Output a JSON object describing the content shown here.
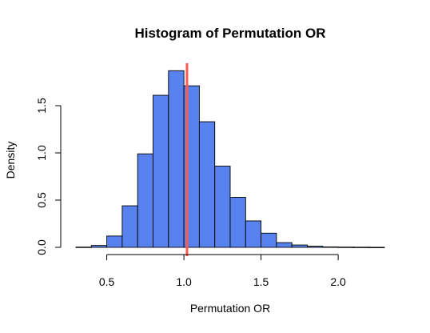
{
  "chart_data": {
    "type": "histogram",
    "title": "Histogram of Permutation OR",
    "xlabel": "Permutation OR",
    "ylabel": "Density",
    "xlim": [
      0.3,
      2.3
    ],
    "ylim": [
      0,
      1.9
    ],
    "x_ticks": [
      0.5,
      1.0,
      1.5,
      2.0
    ],
    "x_tick_labels": [
      "0.5",
      "1.0",
      "1.5",
      "2.0"
    ],
    "y_ticks": [
      0.0,
      0.5,
      1.0,
      1.5
    ],
    "y_tick_labels": [
      "0.0",
      "0.5",
      "1.0",
      "1.5"
    ],
    "bin_width": 0.1,
    "bins": [
      {
        "start": 0.3,
        "end": 0.4,
        "density": 0.003
      },
      {
        "start": 0.4,
        "end": 0.5,
        "density": 0.02
      },
      {
        "start": 0.5,
        "end": 0.6,
        "density": 0.12
      },
      {
        "start": 0.6,
        "end": 0.7,
        "density": 0.44
      },
      {
        "start": 0.7,
        "end": 0.8,
        "density": 0.99
      },
      {
        "start": 0.8,
        "end": 0.9,
        "density": 1.61
      },
      {
        "start": 0.9,
        "end": 1.0,
        "density": 1.87
      },
      {
        "start": 1.0,
        "end": 1.1,
        "density": 1.71
      },
      {
        "start": 1.1,
        "end": 1.2,
        "density": 1.33
      },
      {
        "start": 1.2,
        "end": 1.3,
        "density": 0.86
      },
      {
        "start": 1.3,
        "end": 1.4,
        "density": 0.53
      },
      {
        "start": 1.4,
        "end": 1.5,
        "density": 0.28
      },
      {
        "start": 1.5,
        "end": 1.6,
        "density": 0.15
      },
      {
        "start": 1.6,
        "end": 1.7,
        "density": 0.05
      },
      {
        "start": 1.7,
        "end": 1.8,
        "density": 0.025
      },
      {
        "start": 1.8,
        "end": 1.9,
        "density": 0.012
      },
      {
        "start": 1.9,
        "end": 2.0,
        "density": 0.005
      },
      {
        "start": 2.0,
        "end": 2.1,
        "density": 0.003
      },
      {
        "start": 2.1,
        "end": 2.2,
        "density": 0.002
      },
      {
        "start": 2.2,
        "end": 2.3,
        "density": 0.001
      }
    ],
    "reference_line": {
      "x": 1.02,
      "color": "#ff5a50"
    },
    "bar_color": "#5882ee",
    "grid": false,
    "legend": "none"
  }
}
